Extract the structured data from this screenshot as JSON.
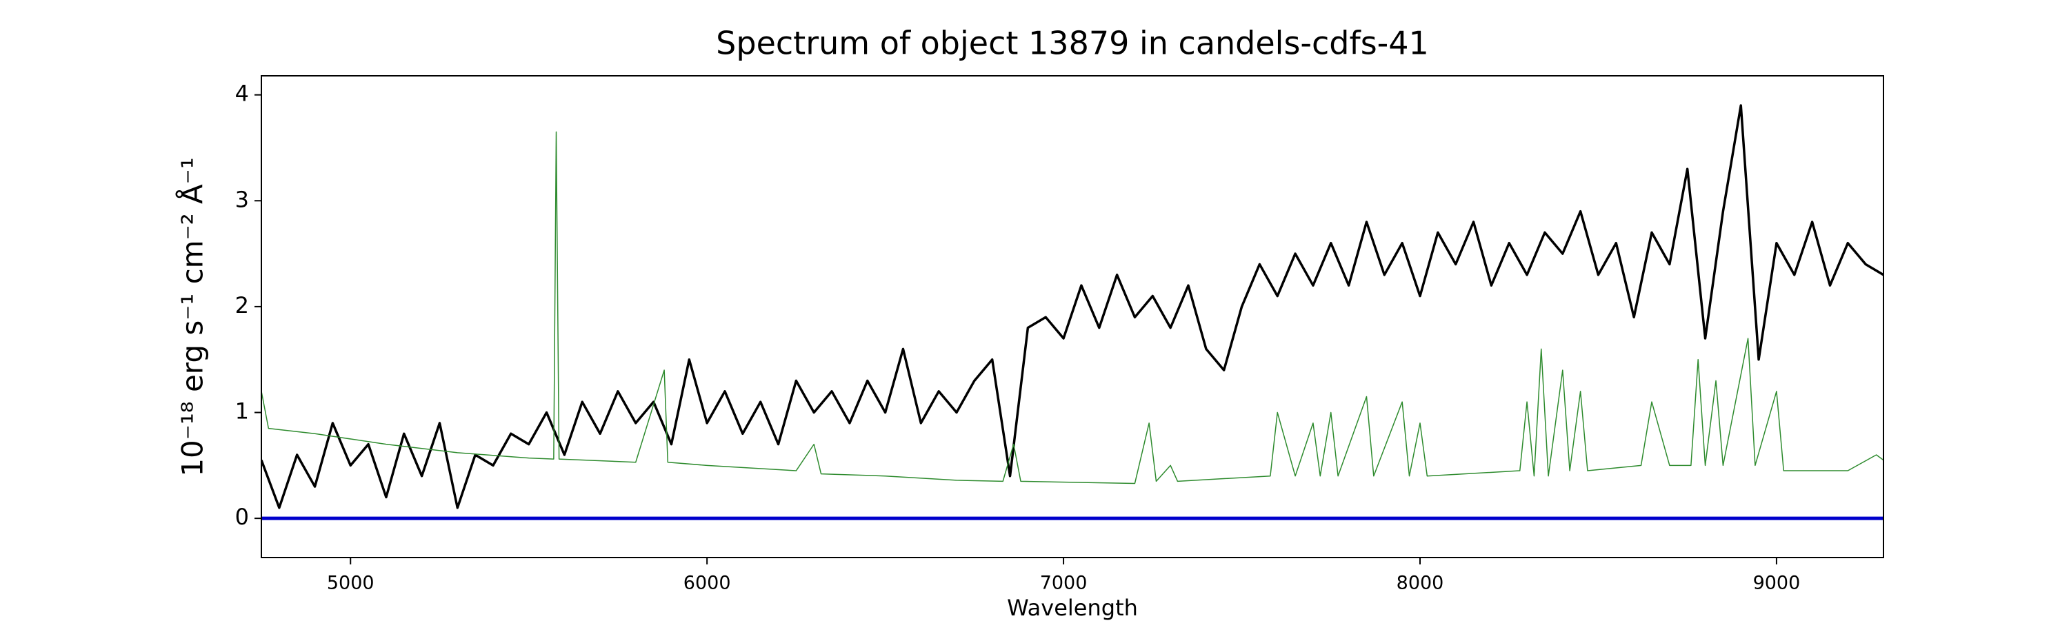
{
  "chart_data": {
    "type": "line",
    "title": "Spectrum of object 13879 in candels-cdfs-41",
    "xlabel": "Wavelength",
    "ylabel": "10⁻¹⁸ erg s⁻¹ cm⁻² Å⁻¹",
    "xlim": [
      4750,
      9300
    ],
    "ylim": [
      -0.37,
      4.18
    ],
    "xticks": [
      5000,
      6000,
      7000,
      8000,
      9000
    ],
    "yticks": [
      0,
      1,
      2,
      3,
      4
    ],
    "series": [
      {
        "color": "#000000",
        "x": [
          4750,
          4800,
          4850,
          4900,
          4950,
          5000,
          5050,
          5100,
          5150,
          5200,
          5250,
          5300,
          5350,
          5400,
          5450,
          5500,
          5550,
          5600,
          5650,
          5700,
          5750,
          5800,
          5850,
          5900,
          5950,
          6000,
          6050,
          6100,
          6150,
          6200,
          6250,
          6300,
          6350,
          6400,
          6450,
          6500,
          6550,
          6600,
          6650,
          6700,
          6750,
          6800,
          6850,
          6900,
          6950,
          7000,
          7050,
          7100,
          7150,
          7200,
          7250,
          7300,
          7350,
          7400,
          7450,
          7500,
          7550,
          7600,
          7650,
          7700,
          7750,
          7800,
          7850,
          7900,
          7950,
          8000,
          8050,
          8100,
          8150,
          8200,
          8250,
          8300,
          8350,
          8400,
          8450,
          8500,
          8550,
          8600,
          8650,
          8700,
          8750,
          8800,
          8850,
          8900,
          8950,
          9000,
          9050,
          9100,
          9150,
          9200,
          9250,
          9300
        ],
        "values": [
          0.55,
          0.1,
          0.6,
          0.3,
          0.9,
          0.5,
          0.7,
          0.2,
          0.8,
          0.4,
          0.9,
          0.1,
          0.6,
          0.5,
          0.8,
          0.7,
          1.0,
          0.6,
          1.1,
          0.8,
          1.2,
          0.9,
          1.1,
          0.7,
          1.5,
          0.9,
          1.2,
          0.8,
          1.1,
          0.7,
          1.3,
          1.0,
          1.2,
          0.9,
          1.3,
          1.0,
          1.6,
          0.9,
          1.2,
          1.0,
          1.3,
          1.5,
          0.4,
          1.8,
          1.9,
          1.7,
          2.2,
          1.8,
          2.3,
          1.9,
          2.1,
          1.8,
          2.2,
          1.6,
          1.4,
          2.0,
          2.4,
          2.1,
          2.5,
          2.2,
          2.6,
          2.2,
          2.8,
          2.3,
          2.6,
          2.1,
          2.7,
          2.4,
          2.8,
          2.2,
          2.6,
          2.3,
          2.7,
          2.5,
          2.9,
          2.3,
          2.6,
          1.9,
          2.7,
          2.4,
          3.3,
          1.7,
          2.9,
          3.9,
          1.5,
          2.6,
          2.3,
          2.8,
          2.2,
          2.6,
          2.4,
          2.3
        ]
      },
      {
        "color": "#2e8b2e",
        "x": [
          4750,
          4770,
          4900,
          5100,
          5300,
          5500,
          5570,
          5577,
          5585,
          5800,
          5880,
          5890,
          6000,
          6250,
          6300,
          6320,
          6500,
          6700,
          6830,
          6860,
          6880,
          7200,
          7240,
          7260,
          7300,
          7320,
          7580,
          7600,
          7650,
          7700,
          7720,
          7750,
          7770,
          7850,
          7870,
          7950,
          7970,
          8000,
          8020,
          8280,
          8300,
          8320,
          8340,
          8360,
          8400,
          8420,
          8450,
          8470,
          8620,
          8650,
          8700,
          8760,
          8780,
          8800,
          8830,
          8850,
          8920,
          8940,
          9000,
          9020,
          9200,
          9280,
          9300
        ],
        "values": [
          1.2,
          0.85,
          0.8,
          0.7,
          0.62,
          0.57,
          0.56,
          3.65,
          0.56,
          0.53,
          1.4,
          0.53,
          0.5,
          0.45,
          0.7,
          0.42,
          0.4,
          0.36,
          0.35,
          0.7,
          0.35,
          0.33,
          0.9,
          0.35,
          0.5,
          0.35,
          0.4,
          1.0,
          0.4,
          0.9,
          0.4,
          1.0,
          0.4,
          1.15,
          0.4,
          1.1,
          0.4,
          0.9,
          0.4,
          0.45,
          1.1,
          0.4,
          1.6,
          0.4,
          1.4,
          0.45,
          1.2,
          0.45,
          0.5,
          1.1,
          0.5,
          0.5,
          1.5,
          0.5,
          1.3,
          0.5,
          1.7,
          0.5,
          1.2,
          0.45,
          0.45,
          0.6,
          0.55
        ]
      },
      {
        "color": "#0000cc",
        "x": [
          4750,
          9300
        ],
        "values": [
          0,
          0
        ]
      }
    ]
  }
}
